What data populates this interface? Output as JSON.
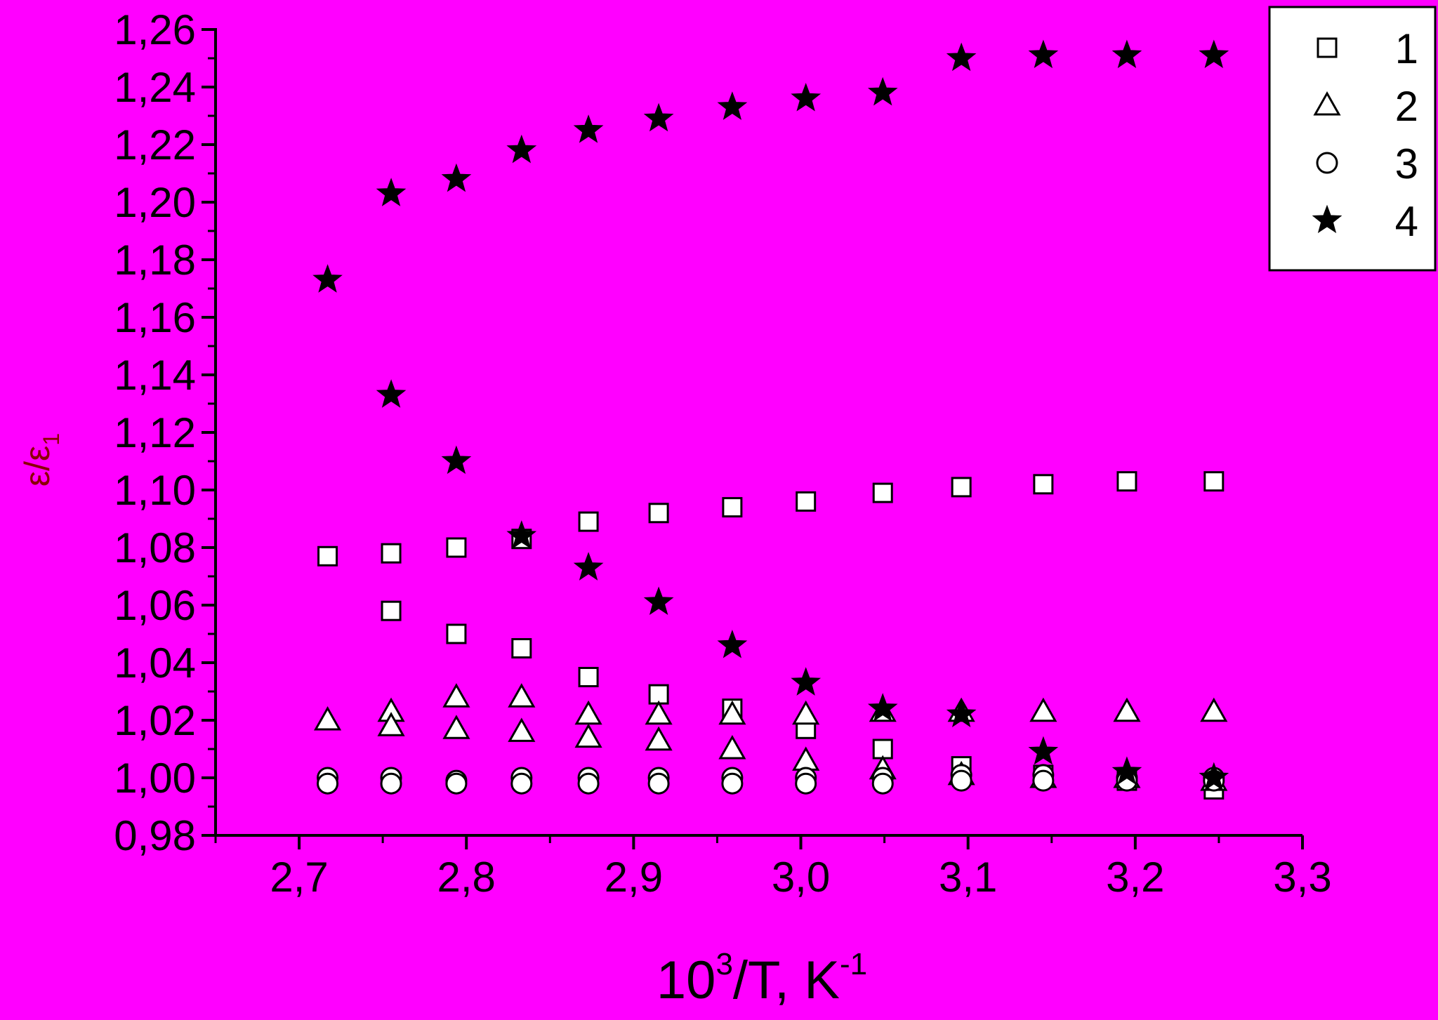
{
  "chart_data": {
    "type": "scatter",
    "title": "",
    "xlabel": {
      "base": "10",
      "sup": "3",
      "rest": "/T, K",
      "sup2": "-1"
    },
    "ylabel": {
      "main": "ε/ε",
      "sub": "1"
    },
    "xlim": [
      2.65,
      3.3
    ],
    "ylim": [
      0.98,
      1.26
    ],
    "x_ticks": [
      "2,7",
      "2,8",
      "2,9",
      "3,0",
      "3,1",
      "3,2",
      "3,3"
    ],
    "x_tick_values": [
      2.7,
      2.8,
      2.9,
      3.0,
      3.1,
      3.2,
      3.3
    ],
    "y_ticks": [
      "0,98",
      "1,00",
      "1,02",
      "1,04",
      "1,06",
      "1,08",
      "1,10",
      "1,12",
      "1,14",
      "1,16",
      "1,18",
      "1,20",
      "1,22",
      "1,24",
      "1,26"
    ],
    "y_tick_values": [
      0.98,
      1.0,
      1.02,
      1.04,
      1.06,
      1.08,
      1.1,
      1.12,
      1.14,
      1.16,
      1.18,
      1.2,
      1.22,
      1.24,
      1.26
    ],
    "legend_position": "top-right",
    "series": [
      {
        "name": "1",
        "marker": "square",
        "points": [
          [
            2.717,
            1.077
          ],
          [
            2.755,
            1.078
          ],
          [
            2.794,
            1.08
          ],
          [
            2.833,
            1.083
          ],
          [
            2.873,
            1.089
          ],
          [
            2.915,
            1.092
          ],
          [
            2.959,
            1.094
          ],
          [
            3.003,
            1.096
          ],
          [
            3.049,
            1.099
          ],
          [
            3.096,
            1.101
          ],
          [
            3.145,
            1.102
          ],
          [
            3.195,
            1.103
          ],
          [
            3.247,
            1.103
          ],
          [
            2.755,
            1.058
          ],
          [
            2.794,
            1.05
          ],
          [
            2.833,
            1.045
          ],
          [
            2.873,
            1.035
          ],
          [
            2.915,
            1.029
          ],
          [
            2.959,
            1.024
          ],
          [
            3.003,
            1.017
          ],
          [
            3.049,
            1.01
          ],
          [
            3.096,
            1.004
          ],
          [
            3.145,
            1.001
          ],
          [
            3.195,
            0.999
          ],
          [
            3.247,
            0.996
          ]
        ]
      },
      {
        "name": "2",
        "marker": "triangle",
        "points": [
          [
            2.717,
            1.02
          ],
          [
            2.755,
            1.023
          ],
          [
            2.794,
            1.028
          ],
          [
            2.833,
            1.028
          ],
          [
            2.873,
            1.022
          ],
          [
            2.915,
            1.022
          ],
          [
            2.959,
            1.022
          ],
          [
            3.003,
            1.022
          ],
          [
            3.049,
            1.023
          ],
          [
            3.096,
            1.023
          ],
          [
            3.145,
            1.023
          ],
          [
            3.195,
            1.023
          ],
          [
            3.247,
            1.023
          ],
          [
            2.755,
            1.018
          ],
          [
            2.794,
            1.017
          ],
          [
            2.833,
            1.016
          ],
          [
            2.873,
            1.014
          ],
          [
            2.915,
            1.013
          ],
          [
            2.959,
            1.01
          ],
          [
            3.003,
            1.006
          ],
          [
            3.049,
            1.003
          ],
          [
            3.096,
            1.001
          ],
          [
            3.145,
            1.0
          ],
          [
            3.195,
            1.0
          ],
          [
            3.247,
            0.999
          ]
        ]
      },
      {
        "name": "3",
        "marker": "circle",
        "points": [
          [
            2.717,
            1.0
          ],
          [
            2.755,
            1.0
          ],
          [
            2.794,
            0.999
          ],
          [
            2.833,
            1.0
          ],
          [
            2.873,
            1.0
          ],
          [
            2.915,
            1.0
          ],
          [
            2.959,
            1.0
          ],
          [
            3.003,
            1.0
          ],
          [
            3.049,
            1.0
          ],
          [
            3.096,
            1.001
          ],
          [
            3.145,
            1.001
          ],
          [
            3.195,
            1.0
          ],
          [
            3.247,
            1.0
          ],
          [
            2.717,
            0.998
          ],
          [
            2.755,
            0.998
          ],
          [
            2.794,
            0.998
          ],
          [
            2.833,
            0.998
          ],
          [
            2.873,
            0.998
          ],
          [
            2.915,
            0.998
          ],
          [
            2.959,
            0.998
          ],
          [
            3.003,
            0.998
          ],
          [
            3.049,
            0.998
          ],
          [
            3.096,
            0.999
          ],
          [
            3.145,
            0.999
          ],
          [
            3.195,
            0.999
          ],
          [
            3.247,
            0.999
          ]
        ]
      },
      {
        "name": "4",
        "marker": "star",
        "points": [
          [
            2.717,
            1.173
          ],
          [
            2.755,
            1.203
          ],
          [
            2.794,
            1.208
          ],
          [
            2.833,
            1.218
          ],
          [
            2.873,
            1.225
          ],
          [
            2.915,
            1.229
          ],
          [
            2.959,
            1.233
          ],
          [
            3.003,
            1.236
          ],
          [
            3.049,
            1.238
          ],
          [
            3.096,
            1.25
          ],
          [
            3.145,
            1.251
          ],
          [
            3.195,
            1.251
          ],
          [
            3.247,
            1.251
          ],
          [
            2.755,
            1.133
          ],
          [
            2.794,
            1.11
          ],
          [
            2.833,
            1.084
          ],
          [
            2.873,
            1.073
          ],
          [
            2.915,
            1.061
          ],
          [
            2.959,
            1.046
          ],
          [
            3.003,
            1.033
          ],
          [
            3.049,
            1.024
          ],
          [
            3.096,
            1.022
          ],
          [
            3.145,
            1.009
          ],
          [
            3.195,
            1.002
          ],
          [
            3.247,
            1.0
          ]
        ]
      }
    ]
  }
}
